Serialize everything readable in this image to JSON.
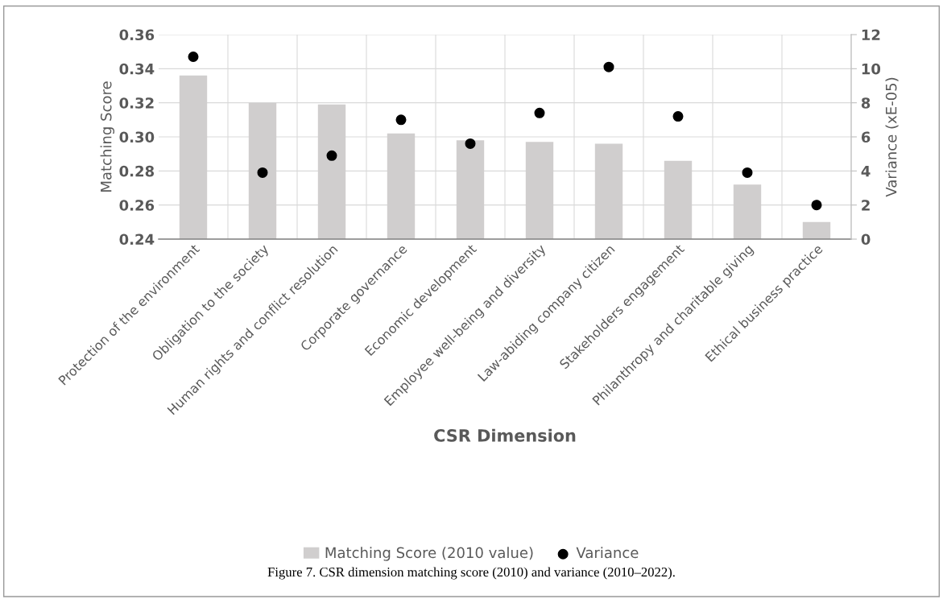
{
  "chart_data": {
    "type": "bar",
    "xlabel": "CSR Dimension",
    "ylabel": "Matching Score",
    "y2label": "Variance (xE-05)",
    "categories": [
      "Protection of the environment",
      "Obligation to the society",
      "Human rights and conflict resolution",
      "Corporate governance",
      "Economic development",
      "Employee well-being and diversity",
      "Law-abiding company citizen",
      "Stakeholders engagement",
      "Philanthropy and charitable giving",
      "Ethical business practice"
    ],
    "series": [
      {
        "name": "Matching Score (2010 value)",
        "color": "#d0cece",
        "values": [
          0.336,
          0.32,
          0.319,
          0.302,
          0.298,
          0.297,
          0.296,
          0.286,
          0.272,
          0.25
        ]
      },
      {
        "name": "Variance",
        "type": "scatter",
        "axis": "y2",
        "color": "#000000",
        "marker": "circle",
        "values": [
          10.7,
          3.9,
          4.9,
          7.0,
          5.6,
          7.4,
          10.1,
          7.2,
          3.9,
          2.0
        ]
      }
    ],
    "ylim": [
      0.24,
      0.36
    ],
    "yticks": [
      0.24,
      0.26,
      0.28,
      {
        "value": 0.3,
        "label": "0.30"
      },
      0.32,
      0.34,
      0.36
    ],
    "y2lim": [
      0,
      12
    ],
    "y2ticks": [
      0,
      2,
      4,
      6,
      8,
      10,
      12
    ],
    "grid": true,
    "legend": "bottom",
    "annotations": [
      "Figure 7. CSR dimension matching score (2010) and variance (2010–2022)."
    ]
  }
}
